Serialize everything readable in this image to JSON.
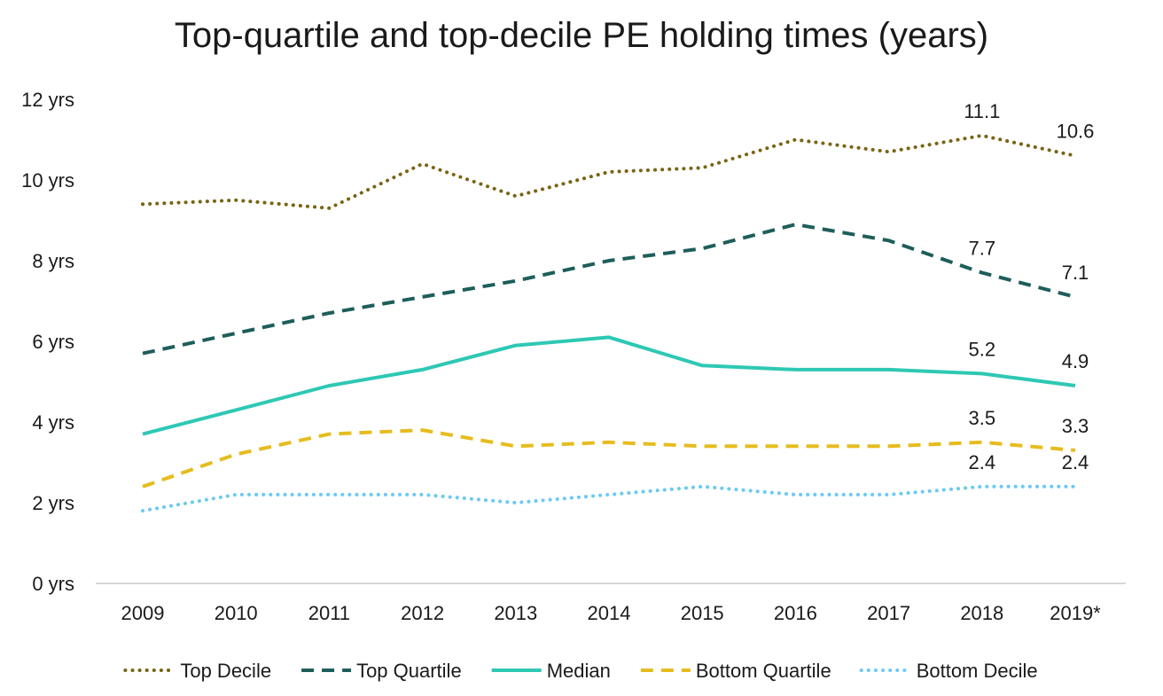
{
  "chart_data": {
    "type": "line",
    "title": "Top-quartile and top-decile PE holding times (years)",
    "categories": [
      "2009",
      "2010",
      "2011",
      "2012",
      "2013",
      "2014",
      "2015",
      "2016",
      "2017",
      "2018",
      "2019*"
    ],
    "y_tick_labels": [
      "0 yrs",
      "2 yrs",
      "4 yrs",
      "6 yrs",
      "8 yrs",
      "10 yrs",
      "12 yrs"
    ],
    "ylim": [
      0,
      12
    ],
    "grid": false,
    "legend_position": "bottom",
    "series": [
      {
        "name": "Top Decile",
        "color": "#7a6414",
        "style": "dotted",
        "values": [
          9.4,
          9.5,
          9.3,
          10.4,
          9.6,
          10.2,
          10.3,
          11.0,
          10.7,
          11.1,
          10.6
        ],
        "labels": [
          "",
          "",
          "",
          "",
          "",
          "",
          "",
          "",
          "",
          "11.1",
          "10.6"
        ]
      },
      {
        "name": "Top Quartile",
        "color": "#1e5e5a",
        "style": "dashed",
        "values": [
          5.7,
          6.2,
          6.7,
          7.1,
          7.5,
          8.0,
          8.3,
          8.9,
          8.5,
          7.7,
          7.1
        ],
        "labels": [
          "",
          "",
          "",
          "",
          "",
          "",
          "",
          "",
          "",
          "7.7",
          "7.1"
        ]
      },
      {
        "name": "Median",
        "color": "#2ec8b4",
        "style": "solid",
        "values": [
          3.7,
          4.3,
          4.9,
          5.3,
          5.9,
          6.1,
          5.4,
          5.3,
          5.3,
          5.2,
          4.9
        ],
        "labels": [
          "",
          "",
          "",
          "",
          "",
          "",
          "",
          "",
          "",
          "5.2",
          "4.9"
        ]
      },
      {
        "name": "Bottom Quartile",
        "color": "#e6bc1e",
        "style": "dashed",
        "values": [
          2.4,
          3.2,
          3.7,
          3.8,
          3.4,
          3.5,
          3.4,
          3.4,
          3.4,
          3.5,
          3.3
        ],
        "labels": [
          "",
          "",
          "",
          "",
          "",
          "",
          "",
          "",
          "",
          "3.5",
          "3.3"
        ]
      },
      {
        "name": "Bottom Decile",
        "color": "#6ccaf0",
        "style": "dotted",
        "values": [
          1.8,
          2.2,
          2.2,
          2.2,
          2.0,
          2.2,
          2.4,
          2.2,
          2.2,
          2.4,
          2.4
        ],
        "labels": [
          "",
          "",
          "",
          "",
          "",
          "",
          "",
          "",
          "",
          "2.4",
          "2.4"
        ]
      }
    ]
  }
}
